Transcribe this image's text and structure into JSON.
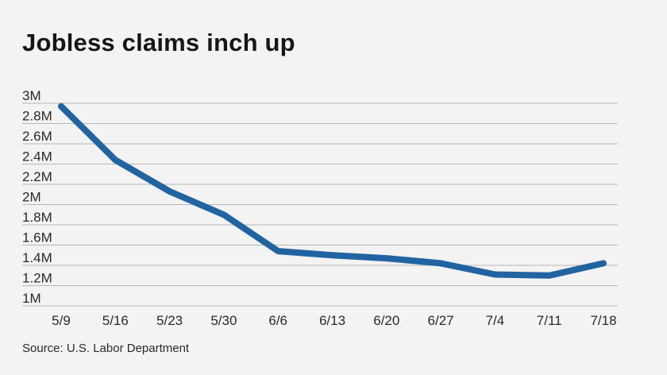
{
  "header": {
    "title": "Jobless claims inch up"
  },
  "footer": {
    "source": "Source: U.S. Labor Department"
  },
  "colors": {
    "line": "#2264a2",
    "grid": "#b5b7b5",
    "background": "#f2f3f2"
  },
  "chart_data": {
    "type": "line",
    "title": "Jobless claims inch up",
    "xlabel": "",
    "ylabel": "",
    "categories": [
      "5/9",
      "5/16",
      "5/23",
      "5/30",
      "6/6",
      "6/13",
      "6/20",
      "6/27",
      "7/4",
      "7/11",
      "7/18"
    ],
    "series": [
      {
        "values": [
          2970000,
          2440000,
          2130000,
          1900000,
          1540000,
          1500000,
          1470000,
          1420000,
          1310000,
          1300000,
          1420000
        ]
      }
    ],
    "ylim": [
      1000000,
      3000000
    ],
    "yticks": [
      1000000,
      1200000,
      1400000,
      1600000,
      1800000,
      2000000,
      2200000,
      2400000,
      2600000,
      2800000,
      3000000
    ],
    "ytick_labels": [
      "1M",
      "1.2M",
      "1.4M",
      "1.6M",
      "1.8M",
      "2M",
      "2.2M",
      "2.4M",
      "2.6M",
      "2.8M",
      "3M"
    ],
    "grid": true,
    "legend": "none"
  }
}
